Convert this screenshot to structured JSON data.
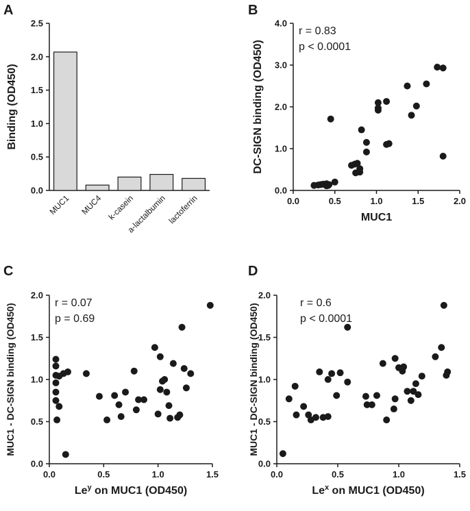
{
  "chart_data": [
    {
      "panel": "A",
      "type": "bar",
      "ylabel": "Binding (OD450)",
      "xlabel": "",
      "ylim": [
        0,
        2.5
      ],
      "yticks": [
        "0.0",
        "0.5",
        "1.0",
        "1.5",
        "2.0",
        "2.5"
      ],
      "categories": [
        "MUC1",
        "MUC4",
        "k-casein",
        "a-lactalbumin",
        "lactoferrin"
      ],
      "values": [
        2.07,
        0.08,
        0.2,
        0.24,
        0.18
      ],
      "bar_color": "#d9d9d9"
    },
    {
      "panel": "B",
      "type": "scatter",
      "xlabel": "MUC1",
      "ylabel": "DC-SIGN binding (OD450)",
      "xlim": [
        0,
        2.0
      ],
      "ylim": [
        0,
        4.0
      ],
      "xticks": [
        "0.0",
        "0.5",
        "1.0",
        "1.5",
        "2.0"
      ],
      "yticks": [
        "0.0",
        "1.0",
        "2.0",
        "3.0",
        "4.0"
      ],
      "stats": [
        "r = 0.83",
        "p < 0.0001"
      ],
      "points": [
        [
          0.25,
          0.12
        ],
        [
          0.3,
          0.13
        ],
        [
          0.33,
          0.14
        ],
        [
          0.36,
          0.15
        ],
        [
          0.4,
          0.16
        ],
        [
          0.42,
          0.12
        ],
        [
          0.4,
          0.11
        ],
        [
          0.43,
          0.14
        ],
        [
          0.5,
          0.2
        ],
        [
          0.45,
          1.71
        ],
        [
          0.7,
          0.6
        ],
        [
          0.74,
          0.63
        ],
        [
          0.77,
          0.65
        ],
        [
          0.75,
          0.42
        ],
        [
          0.8,
          0.44
        ],
        [
          0.8,
          0.52
        ],
        [
          0.82,
          1.45
        ],
        [
          0.88,
          1.15
        ],
        [
          0.88,
          0.92
        ],
        [
          1.02,
          2.1
        ],
        [
          1.02,
          1.97
        ],
        [
          1.02,
          1.92
        ],
        [
          1.12,
          2.13
        ],
        [
          1.12,
          1.1
        ],
        [
          1.15,
          1.12
        ],
        [
          1.37,
          2.5
        ],
        [
          1.42,
          1.8
        ],
        [
          1.48,
          2.02
        ],
        [
          1.6,
          2.55
        ],
        [
          1.73,
          2.95
        ],
        [
          1.8,
          2.93
        ],
        [
          1.8,
          0.82
        ]
      ]
    },
    {
      "panel": "C",
      "type": "scatter",
      "xlabel_base": "Le",
      "xlabel_sup": "y",
      "xlabel_rest": " on MUC1 (OD450)",
      "ylabel": "MUC1 - DC-SIGN binding (OD450)",
      "xlim": [
        0,
        1.5
      ],
      "ylim": [
        0,
        2.0
      ],
      "xticks": [
        "0.0",
        "0.5",
        "1.0",
        "1.5"
      ],
      "yticks": [
        "0.0",
        "0.5",
        "1.0",
        "1.5",
        "2.0"
      ],
      "stats": [
        "r = 0.07",
        "p = 0.69"
      ],
      "points": [
        [
          0.06,
          1.24
        ],
        [
          0.06,
          1.16
        ],
        [
          0.06,
          1.05
        ],
        [
          0.06,
          0.96
        ],
        [
          0.06,
          0.85
        ],
        [
          0.06,
          0.75
        ],
        [
          0.07,
          0.52
        ],
        [
          0.09,
          0.68
        ],
        [
          0.09,
          1.04
        ],
        [
          0.13,
          1.07
        ],
        [
          0.17,
          1.09
        ],
        [
          0.15,
          0.11
        ],
        [
          0.34,
          1.07
        ],
        [
          0.46,
          0.8
        ],
        [
          0.53,
          0.52
        ],
        [
          0.6,
          0.81
        ],
        [
          0.64,
          0.7
        ],
        [
          0.66,
          0.56
        ],
        [
          0.7,
          0.85
        ],
        [
          0.78,
          1.1
        ],
        [
          0.8,
          0.64
        ],
        [
          0.82,
          0.76
        ],
        [
          0.87,
          0.76
        ],
        [
          0.97,
          1.38
        ],
        [
          1.0,
          0.59
        ],
        [
          1.02,
          1.27
        ],
        [
          1.02,
          0.88
        ],
        [
          1.04,
          0.98
        ],
        [
          1.06,
          1.0
        ],
        [
          1.08,
          0.85
        ],
        [
          1.1,
          0.69
        ],
        [
          1.11,
          0.54
        ],
        [
          1.14,
          1.19
        ],
        [
          1.18,
          0.55
        ],
        [
          1.2,
          0.58
        ],
        [
          1.22,
          1.62
        ],
        [
          1.24,
          1.13
        ],
        [
          1.26,
          0.9
        ],
        [
          1.3,
          1.07
        ],
        [
          1.48,
          1.88
        ]
      ]
    },
    {
      "panel": "D",
      "type": "scatter",
      "xlabel_base": "Le",
      "xlabel_sup": "x",
      "xlabel_rest": " on MUC1 (OD450)",
      "ylabel": "MUC1 - DC-SIGN binding (OD450)",
      "xlim": [
        0,
        1.5
      ],
      "ylim": [
        0,
        2.0
      ],
      "xticks": [
        "0.0",
        "0.5",
        "1.0",
        "1.5"
      ],
      "yticks": [
        "0.0",
        "0.5",
        "1.0",
        "1.5",
        "2.0"
      ],
      "stats": [
        "r = 0.6",
        "p < 0.0001"
      ],
      "points": [
        [
          0.05,
          0.12
        ],
        [
          0.1,
          0.77
        ],
        [
          0.15,
          0.92
        ],
        [
          0.16,
          0.58
        ],
        [
          0.22,
          0.68
        ],
        [
          0.26,
          0.58
        ],
        [
          0.28,
          0.52
        ],
        [
          0.32,
          0.55
        ],
        [
          0.35,
          1.09
        ],
        [
          0.38,
          0.55
        ],
        [
          0.42,
          0.56
        ],
        [
          0.42,
          1.0
        ],
        [
          0.45,
          1.07
        ],
        [
          0.49,
          0.81
        ],
        [
          0.52,
          1.08
        ],
        [
          0.58,
          1.62
        ],
        [
          0.58,
          0.97
        ],
        [
          0.73,
          0.8
        ],
        [
          0.74,
          0.7
        ],
        [
          0.78,
          0.7
        ],
        [
          0.82,
          0.81
        ],
        [
          0.87,
          1.19
        ],
        [
          0.9,
          0.52
        ],
        [
          0.96,
          0.65
        ],
        [
          0.97,
          1.25
        ],
        [
          0.97,
          0.77
        ],
        [
          1.0,
          1.14
        ],
        [
          1.03,
          1.1
        ],
        [
          1.04,
          1.15
        ],
        [
          1.07,
          0.86
        ],
        [
          1.1,
          0.75
        ],
        [
          1.12,
          0.86
        ],
        [
          1.14,
          0.95
        ],
        [
          1.16,
          0.82
        ],
        [
          1.19,
          1.04
        ],
        [
          1.3,
          1.27
        ],
        [
          1.35,
          1.38
        ],
        [
          1.37,
          1.88
        ],
        [
          1.39,
          1.05
        ],
        [
          1.4,
          1.09
        ]
      ]
    }
  ]
}
